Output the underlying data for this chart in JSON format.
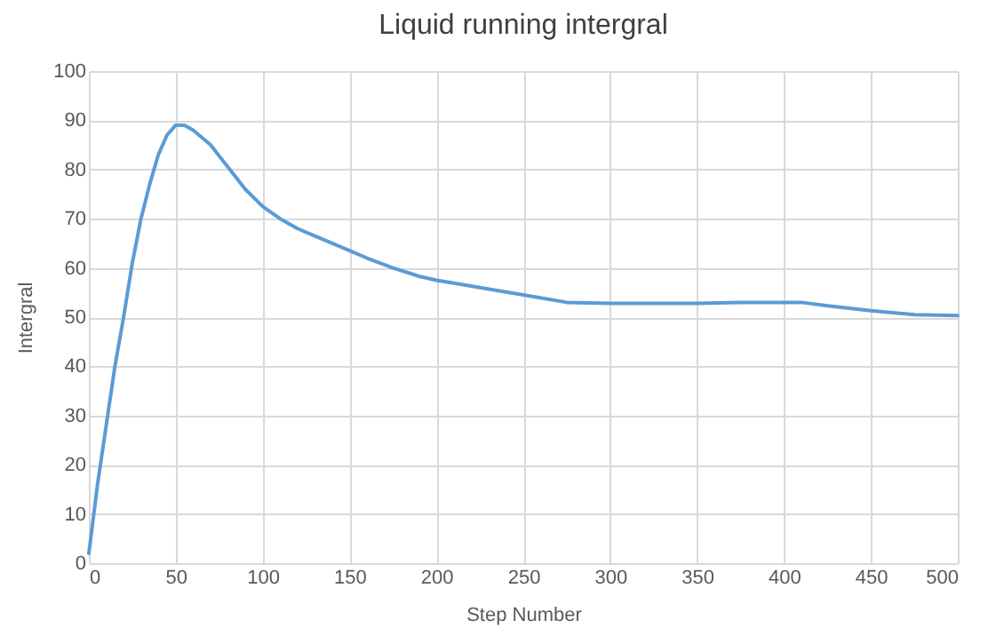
{
  "chart_data": {
    "type": "line",
    "title": "Liquid running intergral",
    "xlabel": "Step Number",
    "ylabel": "Intergral",
    "x": [
      0,
      5,
      10,
      15,
      20,
      25,
      30,
      35,
      40,
      45,
      50,
      55,
      60,
      65,
      70,
      80,
      90,
      100,
      110,
      120,
      130,
      140,
      150,
      160,
      175,
      190,
      200,
      225,
      250,
      275,
      300,
      325,
      350,
      375,
      400,
      410,
      425,
      450,
      475,
      500
    ],
    "series": [
      {
        "color": "#5b9bd5",
        "values": [
          2,
          16,
          28,
          40,
          50,
          61,
          70,
          77,
          83,
          87,
          89,
          89,
          88,
          86.5,
          85,
          80.5,
          76,
          72.5,
          70,
          68,
          66.5,
          65,
          63.5,
          62,
          60,
          58.3,
          57.5,
          56,
          54.5,
          53,
          52.8,
          52.8,
          52.8,
          53,
          53,
          53,
          52.3,
          51.3,
          50.5,
          50.3
        ]
      }
    ],
    "xlim": [
      0,
      500
    ],
    "xticks": [
      0,
      50,
      100,
      150,
      200,
      250,
      300,
      350,
      400,
      450,
      500
    ],
    "ylim": [
      0,
      100
    ],
    "yticks": [
      0,
      10,
      20,
      30,
      40,
      50,
      60,
      70,
      80,
      90,
      100
    ],
    "grid": true,
    "marker": "none",
    "line_style": "solid"
  }
}
